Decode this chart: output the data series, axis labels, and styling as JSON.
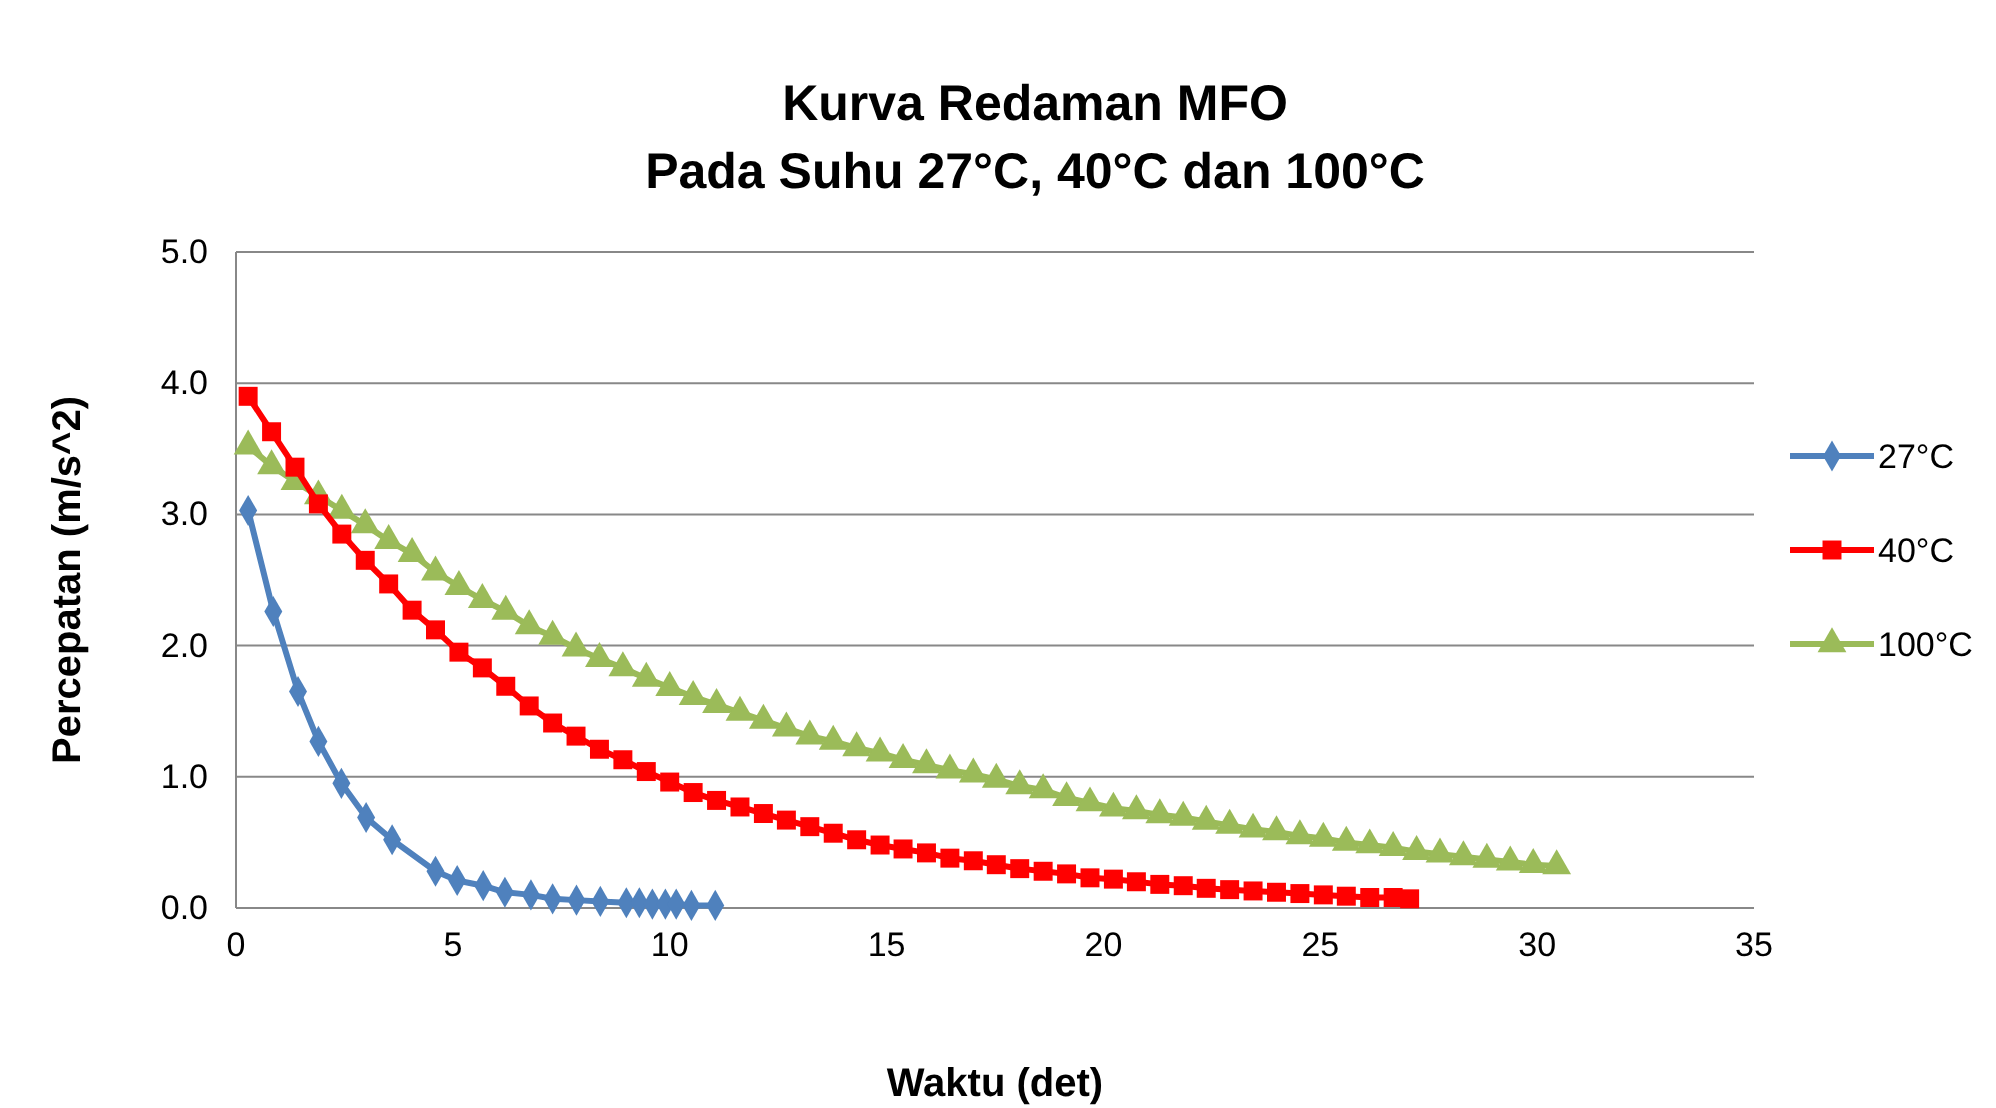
{
  "chart_data": {
    "type": "line",
    "title": "Kurva Redaman MFO\nPada Suhu 27°C, 40°C dan 100°C",
    "xlabel": "Waktu (det)",
    "ylabel": "Percepatan (m/s^2)",
    "xlim": [
      0,
      35
    ],
    "xticks": [
      0,
      5,
      10,
      15,
      20,
      25,
      30,
      35
    ],
    "ylim": [
      0,
      5
    ],
    "yticks": [
      {
        "value": 0,
        "label": "0.0"
      },
      {
        "value": 1,
        "label": "1.0"
      },
      {
        "value": 2,
        "label": "2.0"
      },
      {
        "value": 3,
        "label": "3.0"
      },
      {
        "value": 4,
        "label": "4.0"
      },
      {
        "value": 5,
        "label": "5.0"
      }
    ],
    "grid": "y",
    "legend": "right",
    "series": [
      {
        "name": "27°C",
        "color": "#4f81bd",
        "marker": "diamond",
        "x": [
          0.28,
          0.86,
          1.43,
          1.9,
          2.43,
          3.0,
          3.6,
          4.6,
          5.1,
          5.7,
          6.2,
          6.8,
          7.3,
          7.85,
          8.4,
          9.0,
          9.3,
          9.6,
          9.9,
          10.15,
          10.5,
          11.05
        ],
        "values": [
          3.03,
          2.26,
          1.65,
          1.27,
          0.95,
          0.69,
          0.52,
          0.28,
          0.21,
          0.17,
          0.12,
          0.1,
          0.07,
          0.06,
          0.05,
          0.04,
          0.04,
          0.03,
          0.03,
          0.03,
          0.02,
          0.02
        ]
      },
      {
        "name": "40°C",
        "color": "#ff0000",
        "marker": "square",
        "x": [
          0.28,
          0.82,
          1.36,
          1.9,
          2.44,
          2.98,
          3.52,
          4.06,
          4.6,
          5.14,
          5.68,
          6.22,
          6.76,
          7.3,
          7.84,
          8.38,
          8.92,
          9.46,
          10.0,
          10.54,
          11.08,
          11.62,
          12.16,
          12.69,
          13.23,
          13.77,
          14.31,
          14.85,
          15.38,
          15.92,
          16.46,
          17.0,
          17.53,
          18.07,
          18.61,
          19.15,
          19.69,
          20.23,
          20.76,
          21.3,
          21.84,
          22.37,
          22.91,
          23.45,
          23.99,
          24.53,
          25.07,
          25.6,
          26.14,
          26.68,
          27.06
        ],
        "values": [
          3.9,
          3.63,
          3.36,
          3.08,
          2.85,
          2.65,
          2.47,
          2.27,
          2.12,
          1.95,
          1.83,
          1.69,
          1.54,
          1.41,
          1.31,
          1.21,
          1.13,
          1.04,
          0.96,
          0.88,
          0.82,
          0.77,
          0.72,
          0.67,
          0.62,
          0.57,
          0.52,
          0.48,
          0.45,
          0.42,
          0.38,
          0.36,
          0.33,
          0.3,
          0.28,
          0.26,
          0.23,
          0.22,
          0.2,
          0.18,
          0.17,
          0.15,
          0.14,
          0.13,
          0.12,
          0.11,
          0.1,
          0.09,
          0.08,
          0.08,
          0.07
        ]
      },
      {
        "name": "100°C",
        "color": "#9bbb59",
        "marker": "triangle",
        "x": [
          0.28,
          0.82,
          1.36,
          1.9,
          2.44,
          2.98,
          3.52,
          4.06,
          4.6,
          5.14,
          5.68,
          6.22,
          6.76,
          7.3,
          7.84,
          8.38,
          8.92,
          9.46,
          10.0,
          10.54,
          11.08,
          11.62,
          12.16,
          12.69,
          13.23,
          13.77,
          14.31,
          14.85,
          15.38,
          15.92,
          16.46,
          17.0,
          17.53,
          18.07,
          18.61,
          19.15,
          19.69,
          20.23,
          20.76,
          21.3,
          21.84,
          22.37,
          22.91,
          23.45,
          23.99,
          24.53,
          25.07,
          25.6,
          26.14,
          26.68,
          27.22,
          27.76,
          28.3,
          28.84,
          29.38,
          29.91,
          30.45
        ],
        "values": [
          3.52,
          3.37,
          3.25,
          3.14,
          3.03,
          2.92,
          2.8,
          2.7,
          2.56,
          2.45,
          2.35,
          2.26,
          2.15,
          2.07,
          1.98,
          1.9,
          1.83,
          1.75,
          1.68,
          1.61,
          1.55,
          1.49,
          1.43,
          1.37,
          1.31,
          1.27,
          1.22,
          1.18,
          1.13,
          1.09,
          1.05,
          1.02,
          0.98,
          0.93,
          0.9,
          0.84,
          0.8,
          0.76,
          0.74,
          0.71,
          0.69,
          0.66,
          0.63,
          0.6,
          0.58,
          0.55,
          0.53,
          0.5,
          0.48,
          0.46,
          0.43,
          0.41,
          0.39,
          0.37,
          0.35,
          0.33,
          0.32
        ]
      }
    ]
  }
}
